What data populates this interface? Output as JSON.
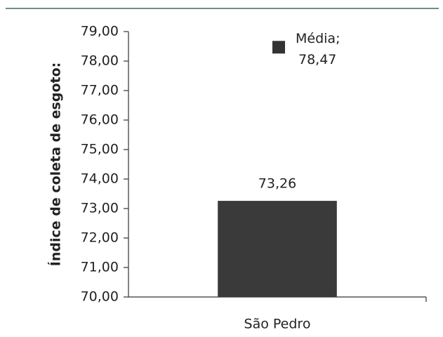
{
  "chart_data": {
    "type": "bar",
    "y_label": "Índice de coleta de esgoto:",
    "categories": [
      "São Pedro"
    ],
    "series": [
      {
        "name": "São Pedro",
        "color": "#3a3a3a",
        "values": [
          73.26
        ],
        "value_labels": [
          "73,26"
        ]
      },
      {
        "name": "Média;",
        "color": "#333333",
        "marker": "square",
        "values": [
          78.47
        ],
        "value_labels": [
          "78,47"
        ]
      }
    ],
    "ylim": [
      70,
      79
    ],
    "yticks": [
      {
        "value": 70,
        "label": "70,00"
      },
      {
        "value": 71,
        "label": "71,00"
      },
      {
        "value": 72,
        "label": "72,00"
      },
      {
        "value": 73,
        "label": "73,00"
      },
      {
        "value": 74,
        "label": "74,00"
      },
      {
        "value": 75,
        "label": "75,00"
      },
      {
        "value": 76,
        "label": "76,00"
      },
      {
        "value": 77,
        "label": "77,00"
      },
      {
        "value": 78,
        "label": "78,00"
      },
      {
        "value": 79,
        "label": "79,00"
      }
    ]
  }
}
